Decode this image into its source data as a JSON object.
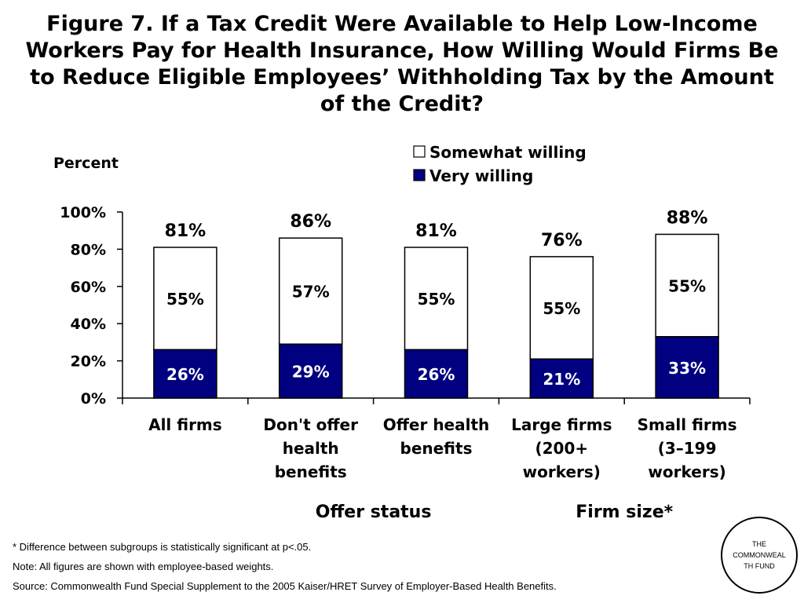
{
  "title_lines": [
    "Figure 7. If a Tax Credit Were Available to Help Low-Income",
    "Workers Pay for Health Insurance, How Willing Would Firms Be",
    "to Reduce Eligible Employees’ Withholding Tax by the Amount",
    "of the Credit?"
  ],
  "colors": {
    "very": "#000080",
    "somewhat": "#ffffff",
    "stroke": "#000000"
  },
  "chart_data": {
    "type": "bar",
    "stacked": true,
    "ylabel": "Percent",
    "ylim": [
      0,
      100
    ],
    "yticks": [
      "0%",
      "20%",
      "40%",
      "60%",
      "80%",
      "100%"
    ],
    "ytick_values": [
      0,
      20,
      40,
      60,
      80,
      100
    ],
    "legend": [
      "Somewhat willing",
      "Very willing"
    ],
    "categories": [
      [
        "All firms"
      ],
      [
        "Don't offer",
        "health",
        "benefits"
      ],
      [
        "Offer health",
        "benefits"
      ],
      [
        "Large firms",
        "(200+",
        "workers)"
      ],
      [
        "Small firms",
        "(3–199",
        "workers)"
      ]
    ],
    "series": [
      {
        "name": "Very willing",
        "values": [
          26,
          29,
          26,
          21,
          33
        ],
        "labels": [
          "26%",
          "29%",
          "26%",
          "21%",
          "33%"
        ]
      },
      {
        "name": "Somewhat willing",
        "values": [
          55,
          57,
          55,
          55,
          55
        ],
        "labels": [
          "55%",
          "57%",
          "55%",
          "55%",
          "55%"
        ]
      }
    ],
    "totals": [
      81,
      86,
      81,
      76,
      88
    ],
    "total_labels": [
      "81%",
      "86%",
      "81%",
      "76%",
      "88%"
    ],
    "group_labels": [
      "Offer status",
      "Firm size*"
    ]
  },
  "footnotes": [
    "* Difference between subgroups is statistically significant at p<.05.",
    "Note: All figures are shown with employee-based weights.",
    "Source: Commonwealth Fund Special Supplement to the 2005 Kaiser/HRET Survey of Employer-Based Health Benefits."
  ],
  "logo": {
    "text": "THE COMMONWEALTH FUND"
  }
}
